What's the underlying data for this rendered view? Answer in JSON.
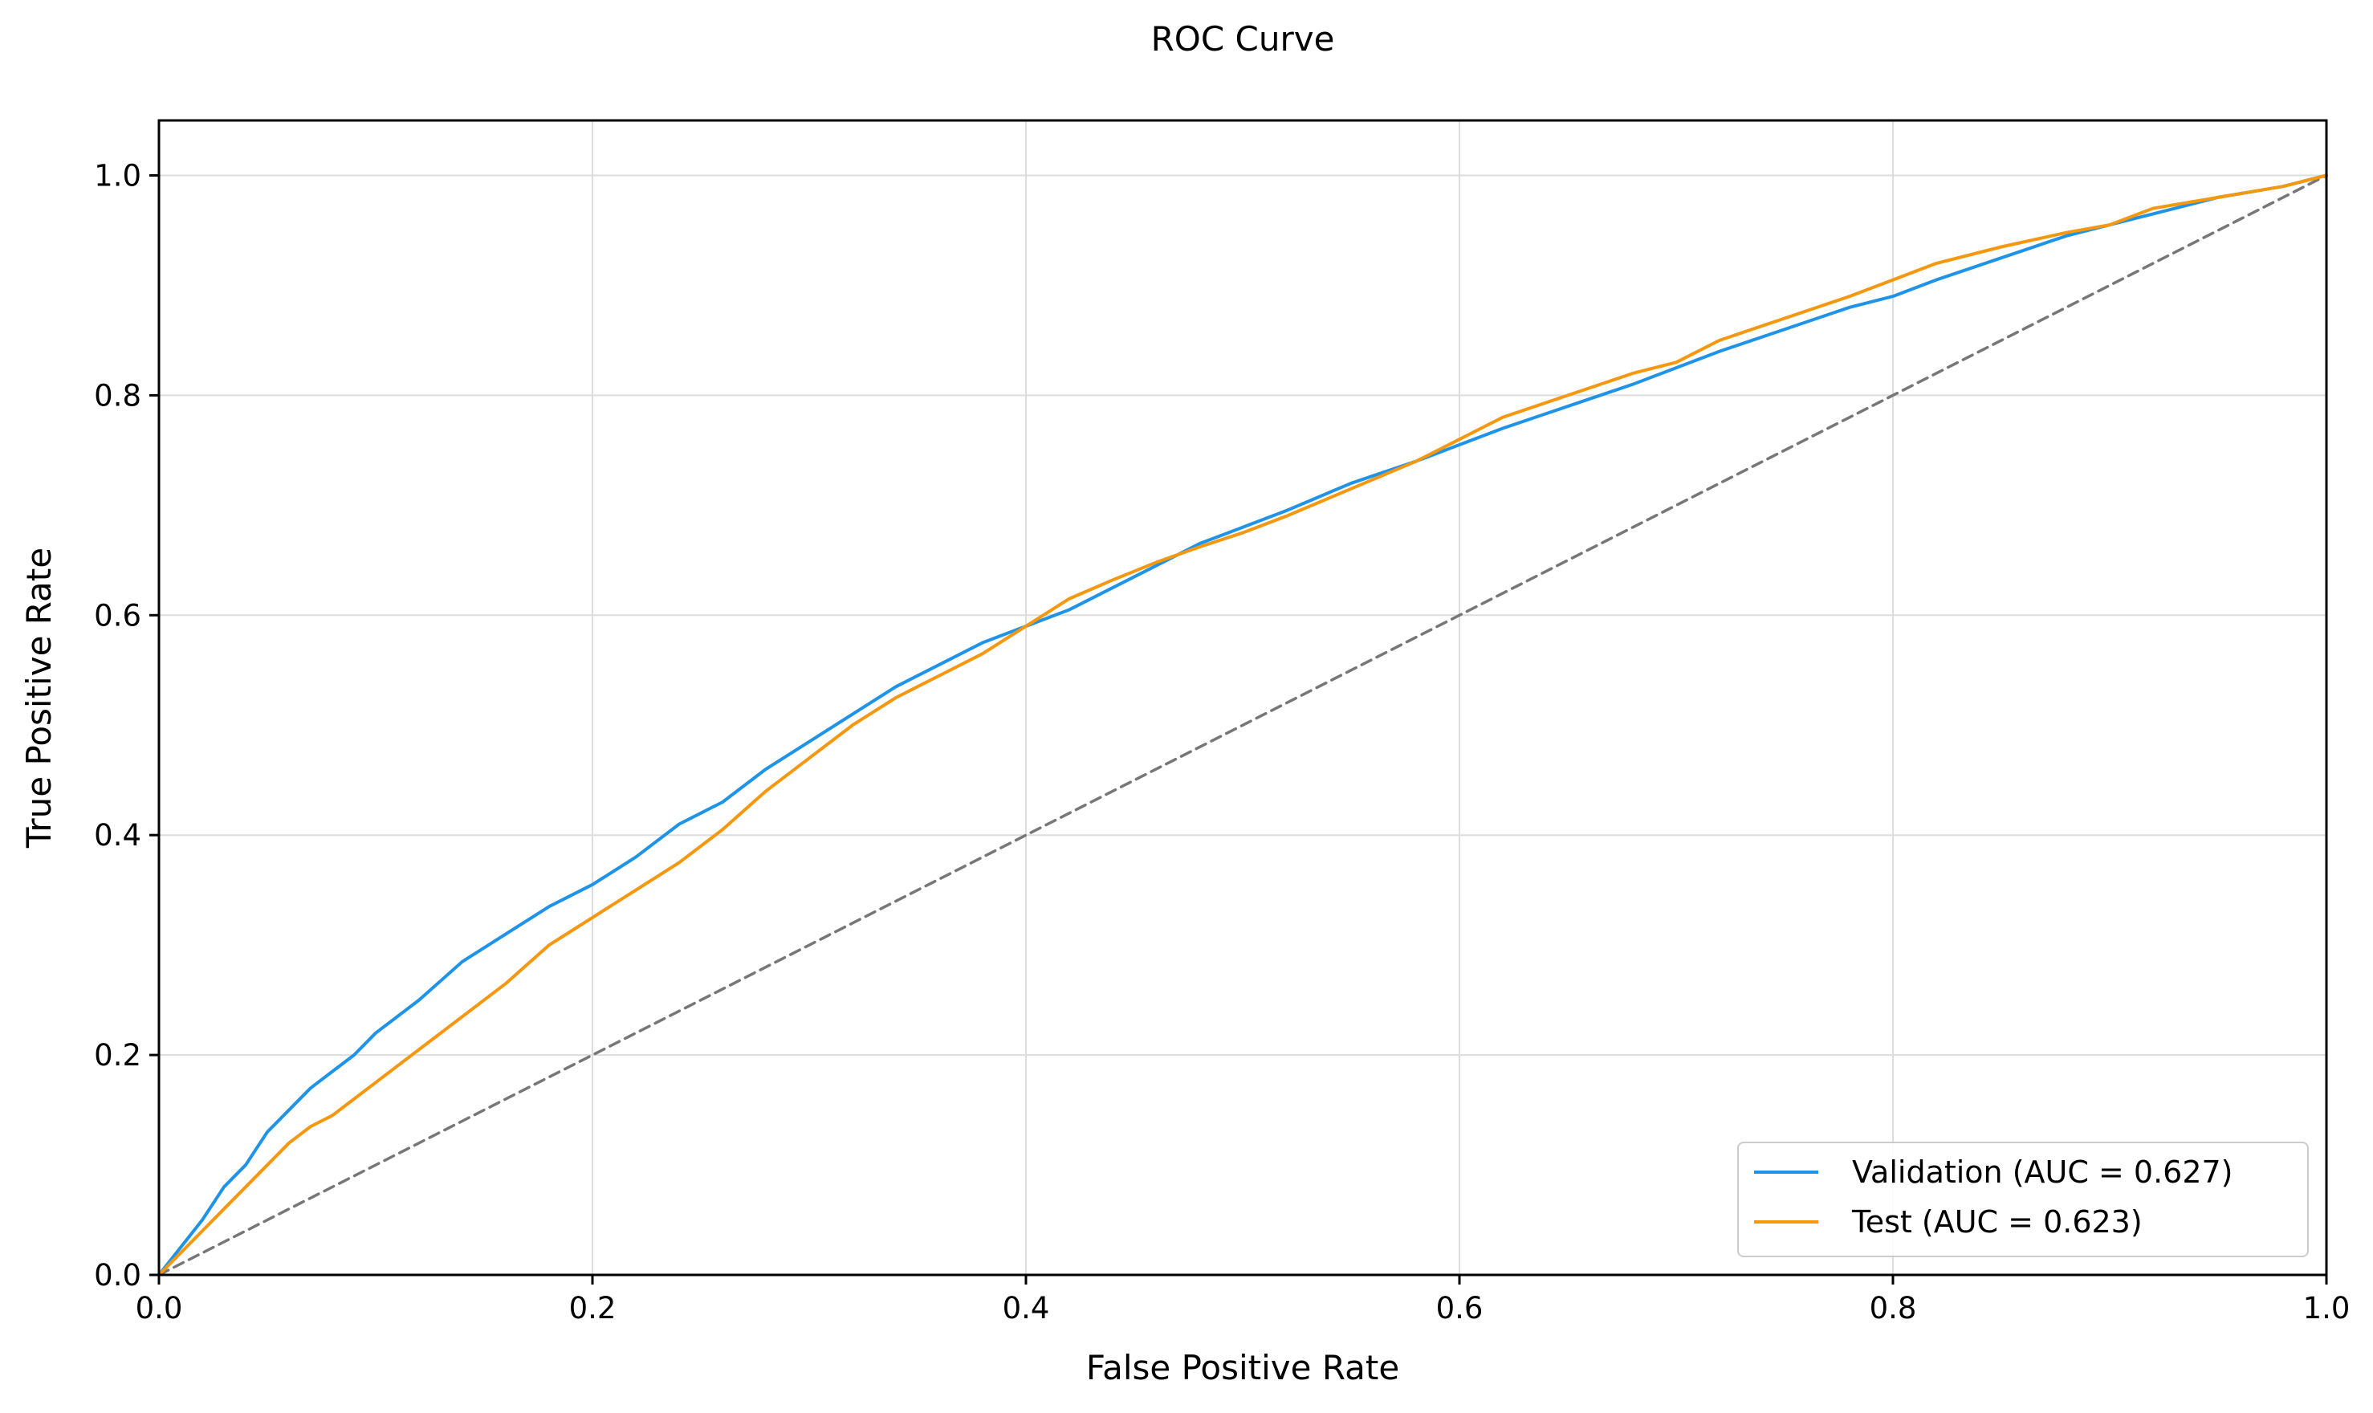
{
  "chart_data": {
    "type": "line",
    "title": "ROC Curve",
    "xlabel": "False Positive Rate",
    "ylabel": "True Positive Rate",
    "xlim": [
      0.0,
      1.0
    ],
    "ylim": [
      0.0,
      1.05
    ],
    "x_ticks": [
      "0.0",
      "0.2",
      "0.4",
      "0.6",
      "0.8",
      "1.0"
    ],
    "y_ticks": [
      "0.0",
      "0.2",
      "0.4",
      "0.6",
      "0.8",
      "1.0"
    ],
    "grid": true,
    "legend_position": "lower-right",
    "series": [
      {
        "name": "Validation (AUC = 0.627)",
        "color": "#1f93e8",
        "x": [
          0.0,
          0.01,
          0.02,
          0.03,
          0.04,
          0.05,
          0.06,
          0.07,
          0.08,
          0.09,
          0.1,
          0.12,
          0.14,
          0.16,
          0.18,
          0.2,
          0.22,
          0.24,
          0.26,
          0.28,
          0.3,
          0.32,
          0.34,
          0.36,
          0.38,
          0.4,
          0.42,
          0.44,
          0.46,
          0.48,
          0.5,
          0.52,
          0.55,
          0.58,
          0.6,
          0.62,
          0.65,
          0.68,
          0.7,
          0.72,
          0.75,
          0.78,
          0.8,
          0.82,
          0.85,
          0.88,
          0.9,
          0.92,
          0.95,
          0.98,
          1.0
        ],
        "y": [
          0.0,
          0.025,
          0.05,
          0.08,
          0.1,
          0.13,
          0.15,
          0.17,
          0.185,
          0.2,
          0.22,
          0.25,
          0.285,
          0.31,
          0.335,
          0.355,
          0.38,
          0.41,
          0.43,
          0.46,
          0.485,
          0.51,
          0.535,
          0.555,
          0.575,
          0.59,
          0.605,
          0.625,
          0.645,
          0.665,
          0.68,
          0.695,
          0.72,
          0.74,
          0.755,
          0.77,
          0.79,
          0.81,
          0.825,
          0.84,
          0.86,
          0.88,
          0.89,
          0.905,
          0.925,
          0.945,
          0.955,
          0.965,
          0.98,
          0.99,
          1.0
        ]
      },
      {
        "name": "Test (AUC = 0.623)",
        "color": "#f5980f",
        "x": [
          0.0,
          0.01,
          0.02,
          0.03,
          0.04,
          0.05,
          0.06,
          0.07,
          0.08,
          0.09,
          0.1,
          0.12,
          0.14,
          0.16,
          0.18,
          0.2,
          0.22,
          0.24,
          0.26,
          0.28,
          0.3,
          0.32,
          0.34,
          0.36,
          0.38,
          0.4,
          0.42,
          0.44,
          0.46,
          0.48,
          0.5,
          0.52,
          0.55,
          0.58,
          0.6,
          0.62,
          0.65,
          0.68,
          0.7,
          0.72,
          0.75,
          0.78,
          0.8,
          0.82,
          0.85,
          0.88,
          0.9,
          0.92,
          0.95,
          0.98,
          1.0
        ],
        "y": [
          0.0,
          0.02,
          0.04,
          0.06,
          0.08,
          0.1,
          0.12,
          0.135,
          0.145,
          0.16,
          0.175,
          0.205,
          0.235,
          0.265,
          0.3,
          0.325,
          0.35,
          0.375,
          0.405,
          0.44,
          0.47,
          0.5,
          0.525,
          0.545,
          0.565,
          0.59,
          0.615,
          0.632,
          0.648,
          0.662,
          0.675,
          0.69,
          0.715,
          0.74,
          0.76,
          0.78,
          0.8,
          0.82,
          0.83,
          0.85,
          0.87,
          0.89,
          0.905,
          0.92,
          0.935,
          0.948,
          0.955,
          0.97,
          0.98,
          0.99,
          1.0
        ]
      },
      {
        "name": "",
        "color": "#777777",
        "style": "dashed",
        "x": [
          0.0,
          1.0
        ],
        "y": [
          0.0,
          1.0
        ]
      }
    ]
  }
}
